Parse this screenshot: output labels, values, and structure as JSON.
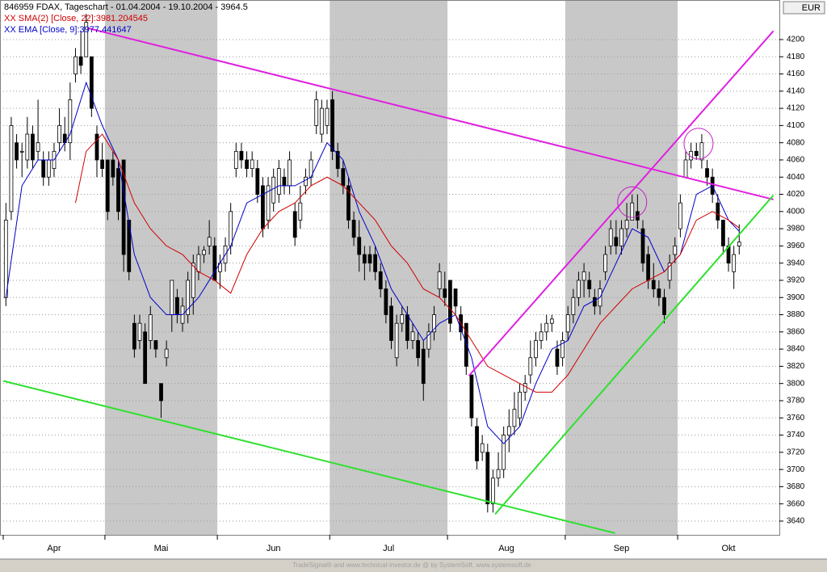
{
  "chart_data": {
    "type": "candlestick",
    "title": "846959  FDAX, Tageschart - 01.04.2004 - 19.10.2004 - 3964.5",
    "currency": "EUR",
    "footer": "TradeSignal® and www.technical-investor.de @ by SystemSoft, www.systemsoft.de",
    "ylim": [
      3624,
      4246
    ],
    "xlim": [
      -0.5,
      144.5
    ],
    "yticks": [
      3640,
      3660,
      3680,
      3700,
      3720,
      3740,
      3760,
      3780,
      3800,
      3820,
      3840,
      3860,
      3880,
      3900,
      3920,
      3940,
      3960,
      3980,
      4000,
      4020,
      4040,
      4060,
      4080,
      4100,
      4120,
      4140,
      4160,
      4180,
      4200
    ],
    "xticks": [
      {
        "value": 0,
        "label": "Apr"
      },
      {
        "value": 19,
        "label": "Mai"
      },
      {
        "value": 40,
        "label": "Jun"
      },
      {
        "value": 61,
        "label": "Jul"
      },
      {
        "value": 83,
        "label": "Aug"
      },
      {
        "value": 105,
        "label": "Sep"
      },
      {
        "value": 126,
        "label": "Okt"
      }
    ],
    "grid": true,
    "band_color": "#c8c8c8",
    "up_color": "#ffffff",
    "down_color": "#000000",
    "candles": [
      [
        3900,
        4010,
        3890,
        3990
      ],
      [
        4000,
        4110,
        3990,
        4100
      ],
      [
        4080,
        4090,
        4050,
        4060
      ],
      [
        4070,
        4080,
        4040,
        4070
      ],
      [
        4060,
        4110,
        4050,
        4090
      ],
      [
        4090,
        4100,
        4050,
        4060
      ],
      [
        4070,
        4130,
        4060,
        4080
      ],
      [
        4060,
        4070,
        4030,
        4040
      ],
      [
        4040,
        4070,
        4030,
        4060
      ],
      [
        4050,
        4080,
        4040,
        4070
      ],
      [
        4080,
        4120,
        4070,
        4100
      ],
      [
        4090,
        4110,
        4070,
        4080
      ],
      [
        4080,
        4150,
        4060,
        4130
      ],
      [
        4160,
        4190,
        4150,
        4180
      ],
      [
        4180,
        4210,
        4160,
        4170
      ],
      [
        4180,
        4230,
        4180,
        4220
      ],
      [
        4180,
        4180,
        4110,
        4120
      ],
      [
        4090,
        4100,
        4040,
        4060
      ],
      [
        4060,
        4080,
        4040,
        4050
      ],
      [
        4060,
        4060,
        3990,
        4000
      ],
      [
        4060,
        4070,
        4030,
        4040
      ],
      [
        4050,
        4060,
        3990,
        4000
      ],
      [
        4060,
        4060,
        3930,
        3950
      ],
      [
        3990,
        3990,
        3920,
        3930
      ],
      [
        3870,
        3880,
        3830,
        3840
      ],
      [
        3850,
        3880,
        3840,
        3870
      ],
      [
        3860,
        3870,
        3800,
        3800
      ],
      [
        3850,
        3890,
        3840,
        3880
      ],
      [
        3850,
        3850,
        3830,
        3840
      ],
      [
        3800,
        3800,
        3760,
        3780
      ],
      [
        3830,
        3850,
        3820,
        3840
      ],
      [
        3880,
        3920,
        3860,
        3920
      ],
      [
        3900,
        3910,
        3870,
        3880
      ],
      [
        3870,
        3900,
        3860,
        3890
      ],
      [
        3880,
        3930,
        3870,
        3920
      ],
      [
        3900,
        3950,
        3880,
        3940
      ],
      [
        3930,
        3960,
        3920,
        3950
      ],
      [
        3950,
        3960,
        3940,
        3955
      ],
      [
        3960,
        3990,
        3950,
        3970
      ],
      [
        3960,
        3970,
        3920,
        3920
      ],
      [
        3930,
        3950,
        3910,
        3940
      ],
      [
        3940,
        3970,
        3930,
        3960
      ],
      [
        3960,
        4010,
        3950,
        4000
      ],
      [
        4050,
        4080,
        4040,
        4070
      ],
      [
        4070,
        4080,
        4050,
        4060
      ],
      [
        4060,
        4070,
        4040,
        4050
      ],
      [
        4050,
        4070,
        4040,
        4060
      ],
      [
        4050,
        4060,
        4010,
        4020
      ],
      [
        4030,
        4040,
        3970,
        3980
      ],
      [
        3990,
        4040,
        3980,
        4030
      ],
      [
        4010,
        4050,
        4000,
        4040
      ],
      [
        4020,
        4060,
        4010,
        4050
      ],
      [
        4040,
        4050,
        4020,
        4030
      ],
      [
        4030,
        4070,
        4020,
        4060
      ],
      [
        4000,
        4010,
        3960,
        3970
      ],
      [
        3990,
        4030,
        3980,
        4010
      ],
      [
        4030,
        4050,
        4020,
        4040
      ],
      [
        4040,
        4070,
        4030,
        4060
      ],
      [
        4100,
        4140,
        4090,
        4130
      ],
      [
        4090,
        4130,
        4080,
        4120
      ],
      [
        4100,
        4130,
        4090,
        4120
      ],
      [
        4130,
        4140,
        4060,
        4070
      ],
      [
        4070,
        4080,
        4040,
        4050
      ],
      [
        4050,
        4060,
        4020,
        4030
      ],
      [
        4030,
        4040,
        3980,
        3990
      ],
      [
        3990,
        4000,
        3960,
        3970
      ],
      [
        3970,
        3990,
        3930,
        3950
      ],
      [
        3950,
        3960,
        3920,
        3940
      ],
      [
        3950,
        3960,
        3930,
        3940
      ],
      [
        3950,
        3960,
        3920,
        3930
      ],
      [
        3930,
        3940,
        3900,
        3910
      ],
      [
        3910,
        3920,
        3870,
        3880
      ],
      [
        3890,
        3900,
        3840,
        3850
      ],
      [
        3830,
        3880,
        3820,
        3870
      ],
      [
        3870,
        3890,
        3860,
        3880
      ],
      [
        3880,
        3890,
        3840,
        3850
      ],
      [
        3850,
        3870,
        3840,
        3860
      ],
      [
        3850,
        3860,
        3820,
        3830
      ],
      [
        3840,
        3850,
        3780,
        3800
      ],
      [
        3840,
        3870,
        3830,
        3860
      ],
      [
        3860,
        3890,
        3850,
        3880
      ],
      [
        3910,
        3940,
        3900,
        3930
      ],
      [
        3910,
        3930,
        3890,
        3900
      ],
      [
        3920,
        3920,
        3860,
        3870
      ],
      [
        3910,
        3910,
        3880,
        3890
      ],
      [
        3880,
        3890,
        3850,
        3860
      ],
      [
        3870,
        3870,
        3810,
        3820
      ],
      [
        3810,
        3810,
        3750,
        3760
      ],
      [
        3750,
        3760,
        3700,
        3710
      ],
      [
        3720,
        3740,
        3710,
        3730
      ],
      [
        3720,
        3730,
        3650,
        3660
      ],
      [
        3660,
        3700,
        3650,
        3690
      ],
      [
        3690,
        3720,
        3680,
        3700
      ],
      [
        3700,
        3750,
        3690,
        3740
      ],
      [
        3740,
        3770,
        3720,
        3750
      ],
      [
        3750,
        3790,
        3740,
        3770
      ],
      [
        3760,
        3800,
        3750,
        3790
      ],
      [
        3790,
        3810,
        3780,
        3800
      ],
      [
        3810,
        3850,
        3800,
        3830
      ],
      [
        3830,
        3860,
        3820,
        3850
      ],
      [
        3850,
        3870,
        3840,
        3860
      ],
      [
        3860,
        3880,
        3850,
        3870
      ],
      [
        3870,
        3880,
        3860,
        3875
      ],
      [
        3840,
        3850,
        3810,
        3820
      ],
      [
        3830,
        3860,
        3820,
        3850
      ],
      [
        3860,
        3890,
        3850,
        3880
      ],
      [
        3880,
        3910,
        3870,
        3900
      ],
      [
        3900,
        3930,
        3890,
        3920
      ],
      [
        3920,
        3940,
        3900,
        3930
      ],
      [
        3920,
        3930,
        3900,
        3910
      ],
      [
        3900,
        3910,
        3880,
        3890
      ],
      [
        3890,
        3920,
        3880,
        3910
      ],
      [
        3930,
        3960,
        3920,
        3950
      ],
      [
        3960,
        3990,
        3950,
        3980
      ],
      [
        3970,
        3990,
        3950,
        3960
      ],
      [
        3960,
        3990,
        3950,
        3980
      ],
      [
        3980,
        4010,
        3970,
        3990
      ],
      [
        3990,
        4020,
        3990,
        4010
      ],
      [
        4000,
        4020,
        3980,
        3990
      ],
      [
        3980,
        3990,
        3930,
        3940
      ],
      [
        3950,
        3960,
        3910,
        3920
      ],
      [
        3920,
        3940,
        3900,
        3910
      ],
      [
        3910,
        3920,
        3890,
        3900
      ],
      [
        3900,
        3910,
        3870,
        3880
      ],
      [
        3920,
        3950,
        3910,
        3940
      ],
      [
        3950,
        3970,
        3940,
        3960
      ],
      [
        3980,
        4020,
        3970,
        4010
      ],
      [
        4040,
        4070,
        4040,
        4060
      ],
      [
        4060,
        4080,
        4050,
        4070
      ],
      [
        4070,
        4080,
        4060,
        4065
      ],
      [
        4060,
        4090,
        4050,
        4080
      ],
      [
        4050,
        4060,
        4030,
        4040
      ],
      [
        4040,
        4050,
        4010,
        4020
      ],
      [
        4010,
        4020,
        3980,
        3990
      ],
      [
        3990,
        3990,
        3950,
        3960
      ],
      [
        3960,
        3970,
        3930,
        3940
      ],
      [
        3930,
        3960,
        3910,
        3950
      ],
      [
        3960,
        3985,
        3950,
        3964.5
      ]
    ],
    "series": [
      {
        "name": "XX EMA [Close, 9]:3977.441647",
        "color": "#0000c8",
        "x": [
          0,
          3,
          6,
          9,
          12,
          15,
          18,
          21,
          24,
          27,
          30,
          33,
          36,
          39,
          42,
          45,
          48,
          51,
          54,
          57,
          60,
          63,
          66,
          69,
          72,
          75,
          78,
          81,
          84,
          87,
          90,
          93,
          96,
          99,
          102,
          105,
          108,
          111,
          114,
          117,
          120,
          123,
          126,
          129,
          132,
          135,
          137
        ],
        "values": [
          3900,
          4030,
          4060,
          4060,
          4090,
          4150,
          4100,
          4060,
          3950,
          3900,
          3880,
          3880,
          3900,
          3930,
          3960,
          4010,
          4020,
          4030,
          4030,
          4040,
          4080,
          4060,
          4000,
          3960,
          3910,
          3880,
          3850,
          3870,
          3880,
          3830,
          3750,
          3730,
          3750,
          3800,
          3840,
          3850,
          3890,
          3900,
          3940,
          3980,
          3970,
          3930,
          3950,
          4020,
          4030,
          3990,
          3977
        ]
      },
      {
        "name": "XX SMA(2) [Close, 22]:3981.204545",
        "color": "#d00000",
        "x": [
          13,
          15,
          18,
          21,
          24,
          27,
          30,
          33,
          36,
          39,
          42,
          45,
          48,
          51,
          54,
          57,
          60,
          63,
          66,
          69,
          72,
          75,
          78,
          81,
          84,
          87,
          90,
          93,
          96,
          99,
          102,
          105,
          108,
          111,
          114,
          117,
          120,
          123,
          126,
          129,
          132,
          135,
          137
        ],
        "values": [
          4010,
          4070,
          4090,
          4060,
          4010,
          3980,
          3960,
          3950,
          3930,
          3920,
          3905,
          3950,
          3980,
          4000,
          4010,
          4030,
          4040,
          4030,
          4010,
          3990,
          3960,
          3940,
          3910,
          3900,
          3880,
          3850,
          3820,
          3810,
          3800,
          3790,
          3790,
          3810,
          3840,
          3870,
          3890,
          3910,
          3920,
          3930,
          3950,
          3990,
          4000,
          3990,
          3981
        ]
      }
    ],
    "trend_lines": [
      {
        "color": "#e020e0",
        "x": [
          15.5,
          143.4
        ],
        "values": [
          4213,
          4014
        ]
      },
      {
        "color": "#e020e0",
        "x": [
          86.5,
          143.4
        ],
        "values": [
          3809,
          4210
        ]
      },
      {
        "color": "#30e030",
        "x": [
          -0.5,
          113.8
        ],
        "values": [
          3803,
          3626
        ]
      },
      {
        "color": "#30e030",
        "x": [
          91.4,
          143.4
        ],
        "values": [
          3648,
          4019
        ]
      }
    ],
    "circles": [
      {
        "color": "#c020c0",
        "x": 117,
        "value": 4011
      },
      {
        "color": "#c020c0",
        "x": 129.4,
        "value": 4079
      }
    ]
  }
}
